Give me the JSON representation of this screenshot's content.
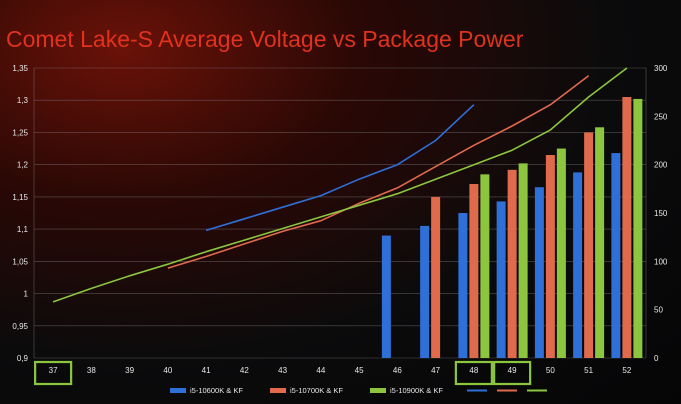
{
  "chart_data": {
    "type": "bar",
    "title": "Comet Lake-S Average Voltage vs Package Power",
    "xlabel": "",
    "ylabel": "",
    "y2label": "",
    "categories": [
      "37",
      "38",
      "39",
      "40",
      "41",
      "42",
      "43",
      "44",
      "45",
      "46",
      "47",
      "48",
      "49",
      "50",
      "51",
      "52"
    ],
    "ylim": [
      0.9,
      1.35
    ],
    "y_ticks": [
      "0,9",
      "0,95",
      "1",
      "1,05",
      "1,1",
      "1,15",
      "1,2",
      "1,25",
      "1,3",
      "1,35"
    ],
    "y2lim": [
      0,
      300
    ],
    "y2_ticks": [
      "0",
      "50",
      "100",
      "150",
      "200",
      "250",
      "300"
    ],
    "highlighted_categories": [
      "37",
      "48",
      "49"
    ],
    "grid": true,
    "legend_position": "bottom",
    "series": [
      {
        "name": "i5-10600K & KF",
        "type": "bar",
        "axis": "left",
        "color": "#2f6fd8",
        "values": [
          null,
          null,
          null,
          null,
          null,
          null,
          null,
          null,
          null,
          1.09,
          1.105,
          1.125,
          1.143,
          1.165,
          1.188,
          1.218
        ]
      },
      {
        "name": "i5-10700K & KF",
        "type": "bar",
        "axis": "left",
        "color": "#e06a4c",
        "values": [
          null,
          null,
          null,
          null,
          null,
          null,
          null,
          null,
          null,
          null,
          1.15,
          1.17,
          1.192,
          1.215,
          1.25,
          1.305
        ]
      },
      {
        "name": "i5-10900K & KF",
        "type": "bar",
        "axis": "left",
        "color": "#8cc63f",
        "values": [
          null,
          null,
          null,
          null,
          null,
          null,
          null,
          null,
          null,
          null,
          null,
          1.185,
          1.202,
          1.225,
          1.258,
          1.302
        ]
      },
      {
        "name": "",
        "type": "line",
        "axis": "right",
        "color": "#2f6fd8",
        "values": [
          null,
          null,
          null,
          null,
          132,
          144,
          156,
          168,
          185,
          200,
          225,
          262,
          null,
          null,
          null,
          null
        ]
      },
      {
        "name": "",
        "type": "line",
        "axis": "right",
        "color": "#e06a4c",
        "values": [
          null,
          null,
          null,
          93,
          105,
          118,
          131,
          142,
          160,
          176,
          198,
          220,
          240,
          262,
          292,
          null
        ]
      },
      {
        "name": "",
        "type": "line",
        "axis": "right",
        "color": "#8cc63f",
        "values": [
          58,
          72,
          85,
          97,
          110,
          122,
          134,
          146,
          158,
          170,
          185,
          200,
          215,
          236,
          270,
          300
        ]
      }
    ]
  }
}
